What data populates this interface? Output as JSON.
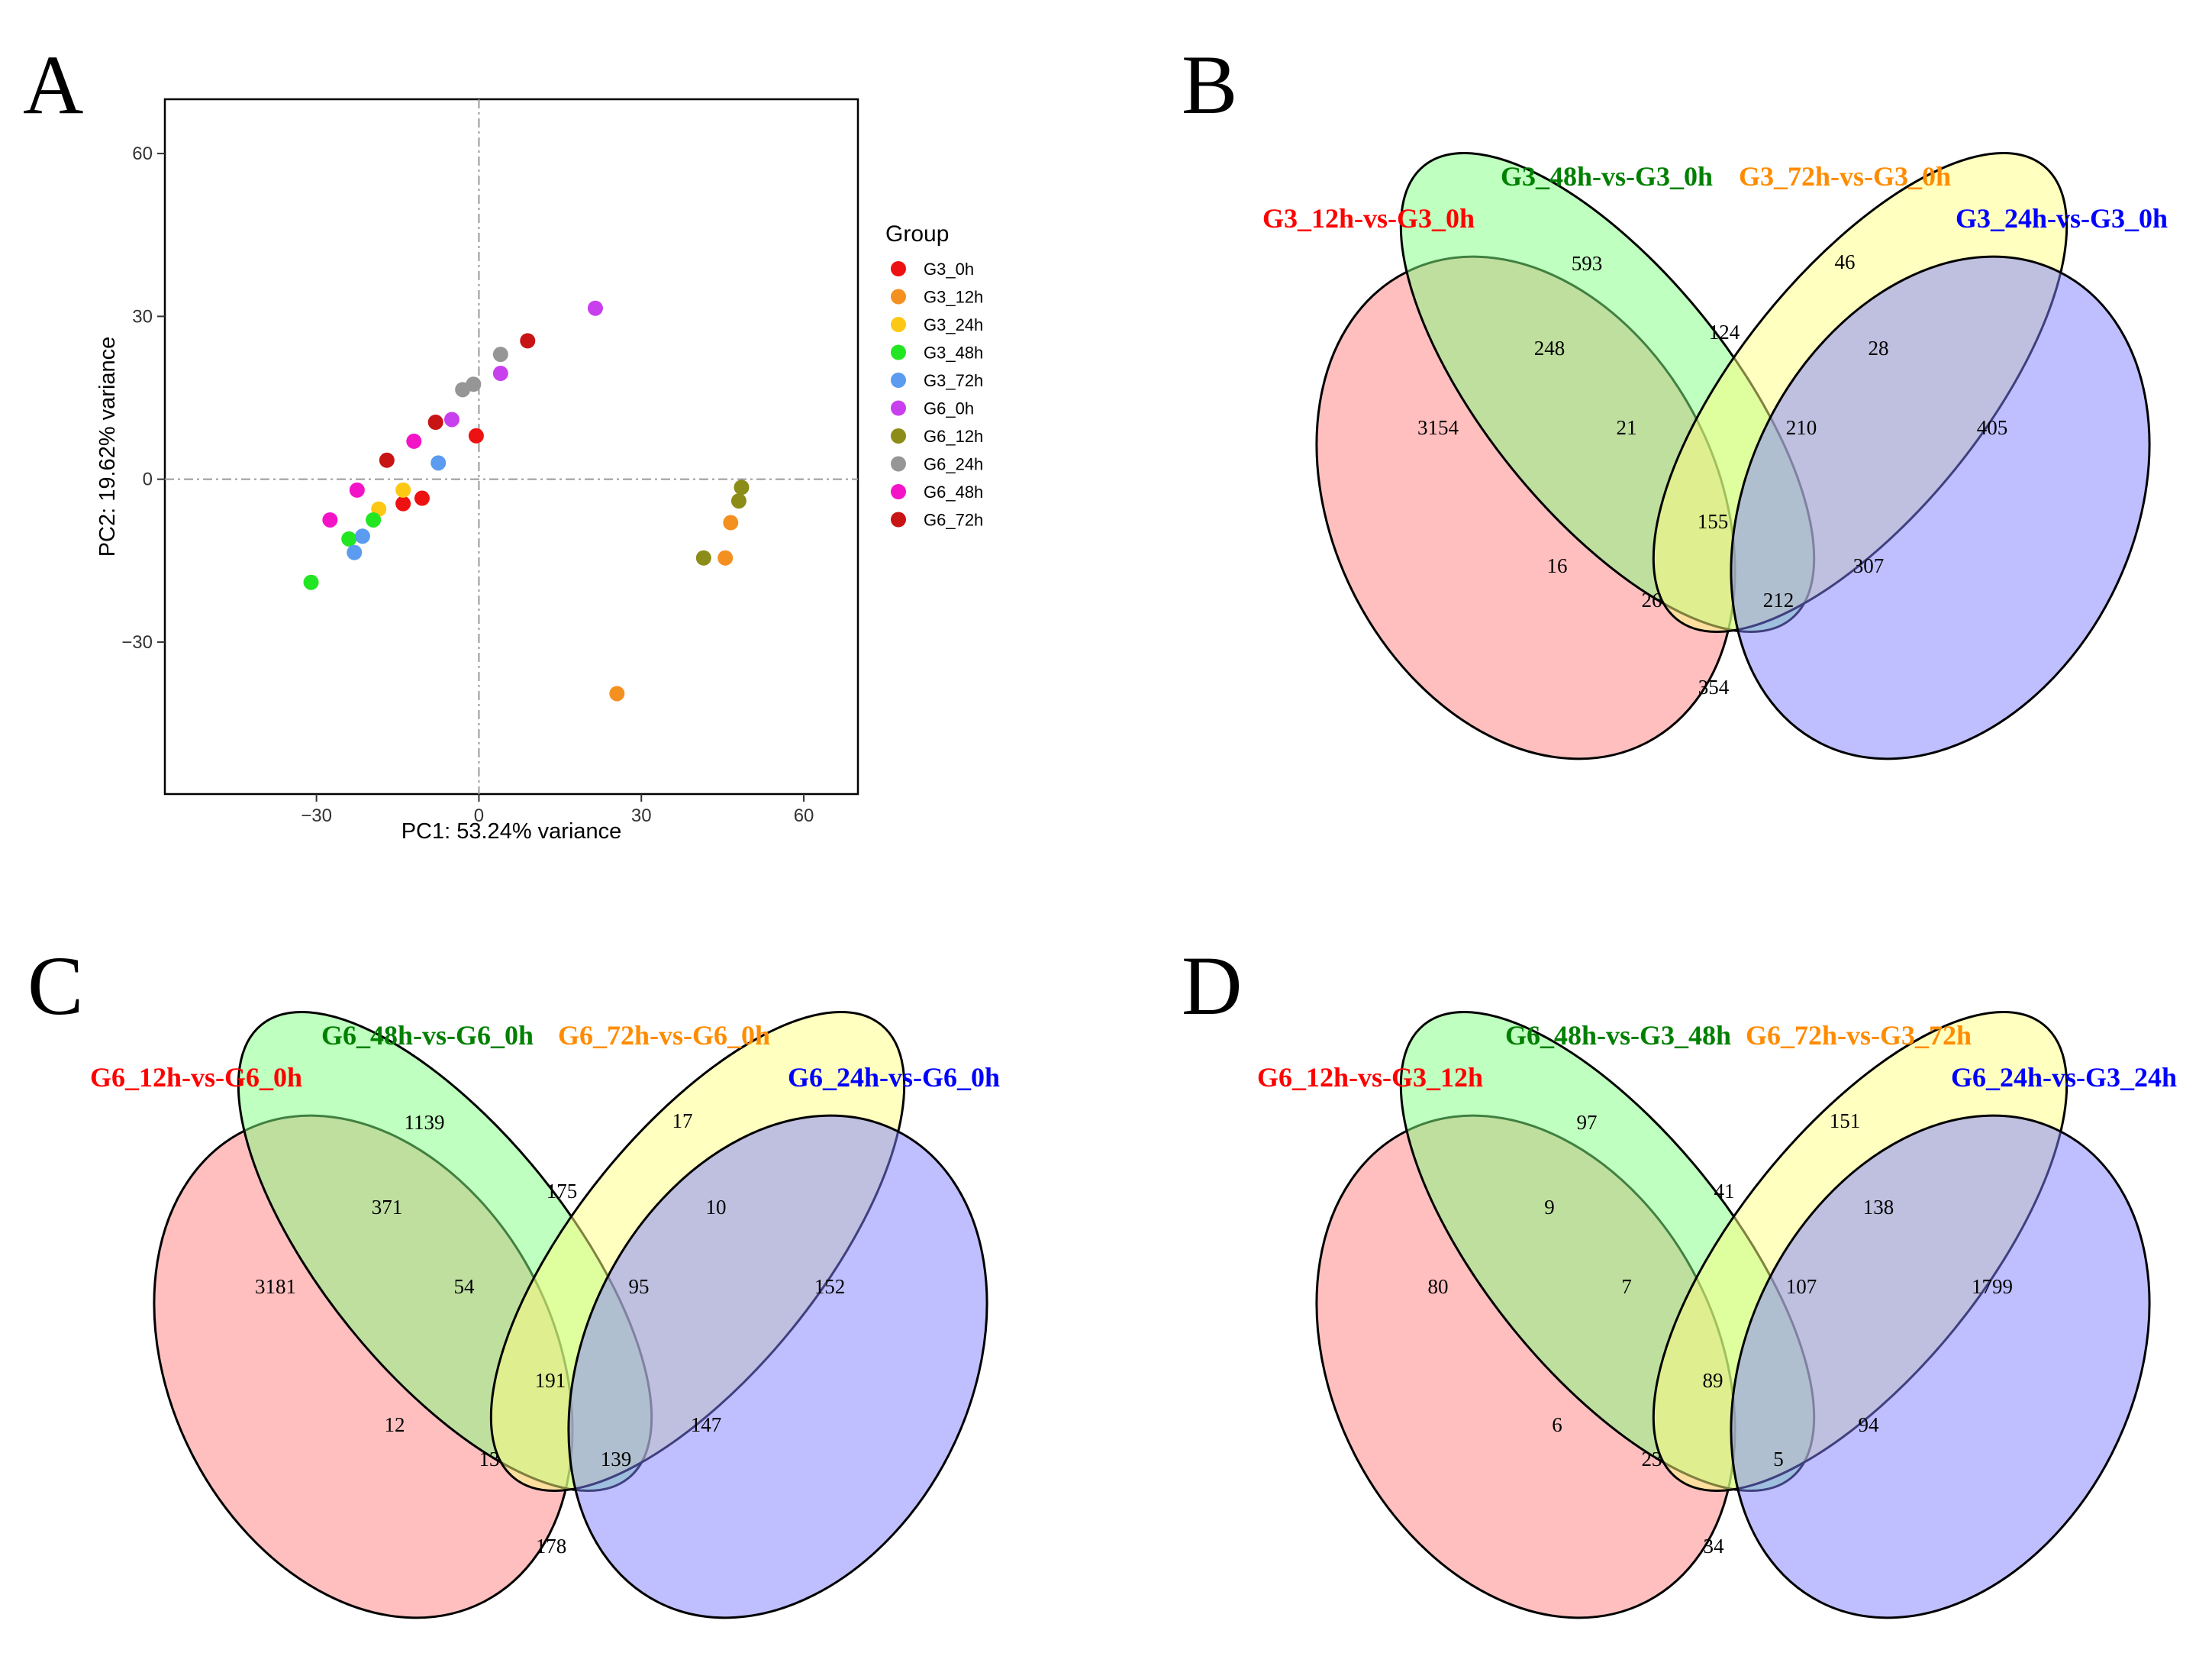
{
  "panels": {
    "a": "A",
    "b": "B",
    "c": "C",
    "d": "D"
  },
  "colors": {
    "red": "#ff0000",
    "green": "#008000",
    "orange": "#ff8c00",
    "blue": "#0000ff",
    "venn_red": "#ff8080",
    "venn_green": "#80ff80",
    "venn_yellow": "#ffff80",
    "venn_blue": "#8080ff"
  },
  "chart_data": [
    {
      "type": "scatter",
      "title": "",
      "xlabel": "PC1: 53.24% variance",
      "ylabel": "PC2: 19.62% variance",
      "xlim": [
        -58,
        70
      ],
      "ylim": [
        -58,
        70
      ],
      "xticks": [
        -30,
        0,
        30,
        60
      ],
      "yticks": [
        -30,
        0,
        30,
        60
      ],
      "legend": {
        "title": "Group",
        "position": "right",
        "entries": [
          {
            "name": "G3_0h",
            "color": "#ee1111"
          },
          {
            "name": "G3_12h",
            "color": "#f49020"
          },
          {
            "name": "G3_24h",
            "color": "#fcc814"
          },
          {
            "name": "G3_48h",
            "color": "#22e622"
          },
          {
            "name": "G3_72h",
            "color": "#5b9bf0"
          },
          {
            "name": "G6_0h",
            "color": "#c840ee"
          },
          {
            "name": "G6_12h",
            "color": "#8c8c18"
          },
          {
            "name": "G6_24h",
            "color": "#969696"
          },
          {
            "name": "G6_48h",
            "color": "#f414c8"
          },
          {
            "name": "G6_72h",
            "color": "#c81414"
          }
        ]
      },
      "series": [
        {
          "name": "G3_0h",
          "points": [
            [
              -0.5,
              8
            ],
            [
              -14,
              -4.5
            ],
            [
              -10.5,
              -3.5
            ]
          ]
        },
        {
          "name": "G3_12h",
          "points": [
            [
              46.5,
              -8
            ],
            [
              45.5,
              -14.5
            ],
            [
              25.5,
              -39.5
            ]
          ]
        },
        {
          "name": "G3_24h",
          "points": [
            [
              -14,
              -2
            ],
            [
              -18.5,
              -5.5
            ]
          ]
        },
        {
          "name": "G3_48h",
          "points": [
            [
              -19.5,
              -7.5
            ],
            [
              -24,
              -11
            ],
            [
              -31,
              -19
            ]
          ]
        },
        {
          "name": "G3_72h",
          "points": [
            [
              -7.5,
              3
            ],
            [
              -21.5,
              -10.5
            ],
            [
              -23,
              -13.5
            ]
          ]
        },
        {
          "name": "G6_0h",
          "points": [
            [
              21.5,
              31.5
            ],
            [
              4,
              19.5
            ],
            [
              -5,
              11
            ]
          ]
        },
        {
          "name": "G6_12h",
          "points": [
            [
              48.5,
              -1.5
            ],
            [
              48,
              -4
            ],
            [
              41.5,
              -14.5
            ]
          ]
        },
        {
          "name": "G6_24h",
          "points": [
            [
              4,
              23
            ],
            [
              -1,
              17.5
            ],
            [
              -3,
              16.5
            ]
          ]
        },
        {
          "name": "G6_48h",
          "points": [
            [
              -12,
              7
            ],
            [
              -22.5,
              -2
            ],
            [
              -27.5,
              -7.5
            ]
          ]
        },
        {
          "name": "G6_72h",
          "points": [
            [
              9,
              25.5
            ],
            [
              -8,
              10.5
            ],
            [
              -17,
              3.5
            ]
          ]
        }
      ]
    },
    {
      "type": "venn",
      "panel": "B",
      "sets": [
        {
          "name": "G3_12h-vs-G3_0h",
          "color": "#ff0000"
        },
        {
          "name": "G3_48h-vs-G3_0h",
          "color": "#008000"
        },
        {
          "name": "G3_72h-vs-G3_0h",
          "color": "#ff8c00"
        },
        {
          "name": "G3_24h-vs-G3_0h",
          "color": "#0000ff"
        }
      ],
      "regions": {
        "A": 3154,
        "B": 593,
        "C": 46,
        "D": 405,
        "AB": 248,
        "BC": 124,
        "CD": 28,
        "AC": 16,
        "BD": 307,
        "AD": 354,
        "ABC": 21,
        "BCD": 210,
        "ACD": 26,
        "ABD": 212,
        "ABCD": 155
      }
    },
    {
      "type": "venn",
      "panel": "C",
      "sets": [
        {
          "name": "G6_12h-vs-G6_0h",
          "color": "#ff0000"
        },
        {
          "name": "G6_48h-vs-G6_0h",
          "color": "#008000"
        },
        {
          "name": "G6_72h-vs-G6_0h",
          "color": "#ff8c00"
        },
        {
          "name": "G6_24h-vs-G6_0h",
          "color": "#0000ff"
        }
      ],
      "regions": {
        "A": 3181,
        "B": 1139,
        "C": 17,
        "D": 152,
        "AB": 371,
        "BC": 175,
        "CD": 10,
        "AC": 12,
        "BD": 147,
        "AD": 178,
        "ABC": 54,
        "BCD": 95,
        "ACD": 13,
        "ABD": 139,
        "ABCD": 191
      }
    },
    {
      "type": "venn",
      "panel": "D",
      "sets": [
        {
          "name": "G6_12h-vs-G3_12h",
          "color": "#ff0000"
        },
        {
          "name": "G6_48h-vs-G3_48h",
          "color": "#008000"
        },
        {
          "name": "G6_72h-vs-G3_72h",
          "color": "#ff8c00"
        },
        {
          "name": "G6_24h-vs-G3_24h",
          "color": "#0000ff"
        }
      ],
      "regions": {
        "A": 80,
        "B": 97,
        "C": 151,
        "D": 1799,
        "AB": 9,
        "BC": 41,
        "CD": 138,
        "AC": 6,
        "BD": 94,
        "AD": 34,
        "ABC": 7,
        "BCD": 107,
        "ACD": 23,
        "ABD": 5,
        "ABCD": 89
      }
    }
  ]
}
